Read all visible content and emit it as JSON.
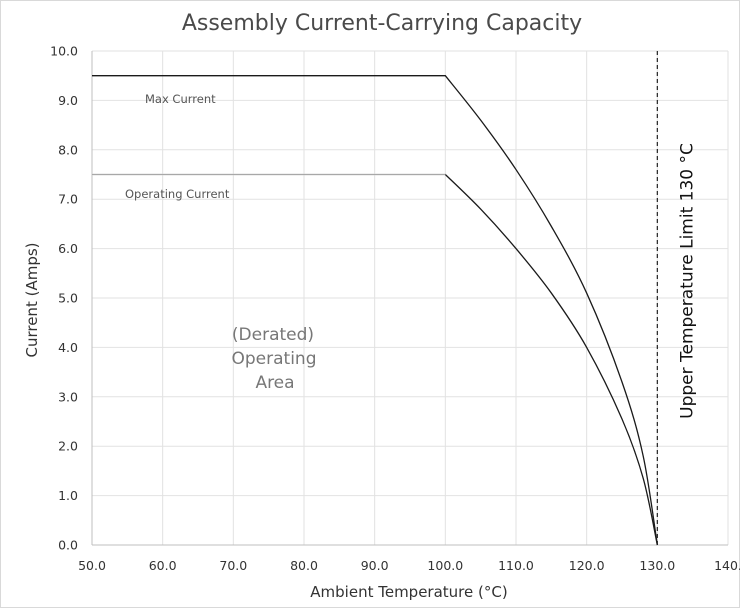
{
  "chart_data": {
    "type": "line",
    "title": "Assembly Current-Carrying Capacity",
    "xlabel": "Ambient Temperature (°C)",
    "ylabel": "Current (Amps)",
    "xlim": [
      50,
      140
    ],
    "ylim": [
      0,
      10
    ],
    "x_ticks": [
      "50.0",
      "60.0",
      "70.0",
      "80.0",
      "90.0",
      "100.0",
      "110.0",
      "120.0",
      "130.0",
      "140."
    ],
    "y_ticks": [
      "0.0",
      "1.0",
      "2.0",
      "3.0",
      "4.0",
      "5.0",
      "6.0",
      "7.0",
      "8.0",
      "9.0",
      "10.0"
    ],
    "grid": true,
    "series": [
      {
        "name": "Max Current",
        "color": "#1a1a1a",
        "x": [
          50,
          100,
          105,
          110,
          115,
          120,
          125,
          128,
          130
        ],
        "y": [
          9.5,
          9.5,
          8.6,
          7.6,
          6.45,
          5.1,
          3.3,
          1.8,
          0
        ]
      },
      {
        "name": "Operating Current",
        "color": "#1a1a1a",
        "x": [
          50,
          100,
          105,
          110,
          115,
          120,
          125,
          128,
          130
        ],
        "y": [
          7.5,
          7.5,
          6.8,
          6.0,
          5.1,
          4.0,
          2.55,
          1.35,
          0
        ]
      }
    ],
    "annotations": {
      "area_lines": [
        "(Derated)",
        "Operating",
        "Area"
      ],
      "limit_label": "Upper Temperature Limit 130 °C",
      "limit_x": 130
    }
  }
}
